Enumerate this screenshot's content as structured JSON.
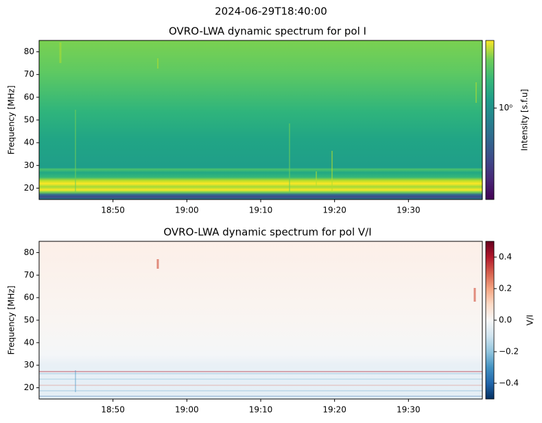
{
  "title": "2024-06-29T18:40:00",
  "chart_data": [
    {
      "type": "heatmap",
      "title": "OVRO-LWA dynamic spectrum for pol I",
      "ylabel": "Frequency [MHz]",
      "xlim": [
        "18:40",
        "19:40"
      ],
      "xticks": [
        "18:50",
        "19:00",
        "19:10",
        "19:20",
        "19:30"
      ],
      "ylim": [
        15,
        85
      ],
      "yticks": [
        20,
        30,
        40,
        50,
        60,
        70,
        80
      ],
      "colormap": "viridis",
      "colorbar_label": "Intensity [s.f.u]",
      "colorbar_log": true,
      "clim": [
        0.29,
        2.5
      ],
      "cticks": [
        {
          "value": 1,
          "label": "10⁰"
        }
      ]
    },
    {
      "type": "heatmap",
      "title": "OVRO-LWA dynamic spectrum for pol V/I",
      "ylabel": "Frequency [MHz]",
      "xlim": [
        "18:40",
        "19:40"
      ],
      "xticks": [
        "18:50",
        "19:00",
        "19:10",
        "19:20",
        "19:30"
      ],
      "ylim": [
        15,
        85
      ],
      "yticks": [
        20,
        30,
        40,
        50,
        60,
        70,
        80
      ],
      "colormap": "RdBu_r",
      "colorbar_label": "V/I",
      "colorbar_log": false,
      "clim": [
        -0.5,
        0.5
      ],
      "cticks": [
        {
          "value": -0.4,
          "label": "−0.4"
        },
        {
          "value": -0.2,
          "label": "−0.2"
        },
        {
          "value": 0,
          "label": "0.0"
        },
        0.2,
        0.4
      ]
    }
  ]
}
